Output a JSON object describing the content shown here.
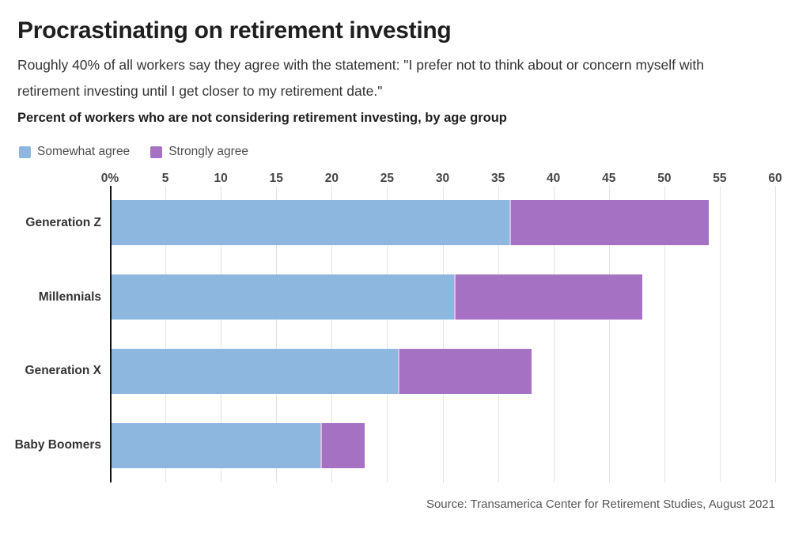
{
  "header": {
    "title": "Procrastinating on retirement investing",
    "description": "Roughly 40% of all workers say they agree with the statement: \"I prefer not to think about or concern myself with retirement investing until I get closer to my retirement date.\""
  },
  "chart_data": {
    "type": "bar",
    "orientation": "horizontal",
    "stacked": true,
    "title": "Percent of workers who are not considering retirement investing, by age group",
    "categories": [
      "Generation Z",
      "Millennials",
      "Generation X",
      "Baby Boomers"
    ],
    "series": [
      {
        "name": "Somewhat agree",
        "color": "#8eb7e0",
        "values": [
          36,
          31,
          26,
          19
        ]
      },
      {
        "name": "Strongly agree",
        "color": "#a571c3",
        "values": [
          18,
          17,
          12,
          4
        ]
      }
    ],
    "totals": [
      54,
      48,
      38,
      23
    ],
    "x_axis": {
      "max": 60,
      "ticks": [
        0,
        5,
        10,
        15,
        20,
        25,
        30,
        35,
        40,
        45,
        50,
        55,
        60
      ],
      "tick_labels": [
        "0%",
        "5",
        "10",
        "15",
        "20",
        "25",
        "30",
        "35",
        "40",
        "45",
        "50",
        "55",
        "60"
      ]
    },
    "grid": true,
    "legend_position": "top",
    "colors": {
      "grid": "#e4e4e4",
      "zero_line": "#111111"
    }
  },
  "footer": {
    "source": "Source: Transamerica Center for Retirement Studies, August 2021"
  }
}
